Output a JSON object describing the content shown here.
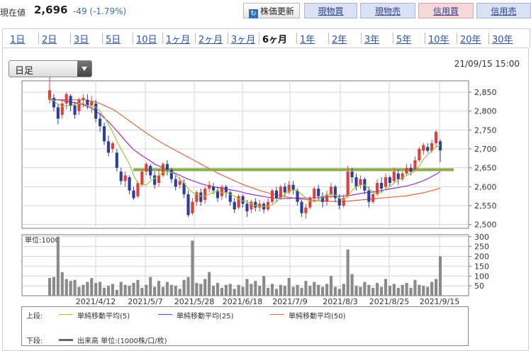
{
  "header": {
    "price_label": "現在値",
    "price_value": "2,696",
    "price_change": "-49 (-1.79%)",
    "buttons": {
      "update": "株価更新",
      "update_icon": "refresh-icon",
      "cash_buy": "現物買",
      "cash_sell": "現物売",
      "margin_buy": "信用買",
      "margin_sell": "信用売"
    }
  },
  "tabs": [
    "1日",
    "2日",
    "3日",
    "5日",
    "10日",
    "1ヶ月",
    "2ヶ月",
    "3ヶ月",
    "6ヶ月",
    "1年",
    "2年",
    "3年",
    "5年",
    "10年",
    "20年",
    "30年"
  ],
  "active_tab": "6ヶ月",
  "select": {
    "value": "日足"
  },
  "datetime": "21/09/15 15:00",
  "legend": {
    "upper_label": "上段:",
    "ma5": "単純移動平均(5)",
    "ma25": "単純移動平均(25)",
    "ma50": "単純移動平均(50)",
    "lower_label": "下段:",
    "volume": "出来高 単位:(1000株/口/枚)"
  },
  "colors": {
    "ma5": "#9ec43a",
    "ma25": "#9c2fc9",
    "ma50": "#d9673d",
    "up": "#e0403a",
    "down": "#2b3f9e",
    "support": "#8cad4e"
  },
  "chart_data": {
    "type": "candlestick",
    "price_axis": {
      "ticks": [
        "2,850",
        "2,800",
        "2,750",
        "2,700",
        "2,650",
        "2,600",
        "2,550",
        "2,500"
      ],
      "ylim": [
        2490,
        2880
      ]
    },
    "volume_axis": {
      "label": "単位:1000",
      "ticks": [
        "300",
        "250",
        "200",
        "150",
        "100",
        "50"
      ],
      "ylim": [
        0,
        310
      ]
    },
    "x_ticks": [
      "2021/4/12",
      "2021/5/7",
      "2021/5/28",
      "2021/6/18",
      "2021/7/9",
      "2021/8/3",
      "2021/8/25",
      "2021/9/15"
    ],
    "support_level": 2645,
    "candles": [
      {
        "o": 2830,
        "c": 2855,
        "h": 2890,
        "l": 2820
      },
      {
        "o": 2835,
        "c": 2810,
        "h": 2845,
        "l": 2800
      },
      {
        "o": 2810,
        "c": 2780,
        "h": 2820,
        "l": 2765
      },
      {
        "o": 2790,
        "c": 2820,
        "h": 2830,
        "l": 2780
      },
      {
        "o": 2820,
        "c": 2845,
        "h": 2850,
        "l": 2805
      },
      {
        "o": 2840,
        "c": 2815,
        "h": 2845,
        "l": 2800
      },
      {
        "o": 2815,
        "c": 2790,
        "h": 2825,
        "l": 2780
      },
      {
        "o": 2800,
        "c": 2830,
        "h": 2835,
        "l": 2790
      },
      {
        "o": 2830,
        "c": 2835,
        "h": 2845,
        "l": 2810
      },
      {
        "o": 2830,
        "c": 2815,
        "h": 2845,
        "l": 2805
      },
      {
        "o": 2815,
        "c": 2825,
        "h": 2840,
        "l": 2795
      },
      {
        "o": 2820,
        "c": 2780,
        "h": 2830,
        "l": 2770
      },
      {
        "o": 2780,
        "c": 2760,
        "h": 2795,
        "l": 2745
      },
      {
        "o": 2760,
        "c": 2720,
        "h": 2770,
        "l": 2710
      },
      {
        "o": 2720,
        "c": 2690,
        "h": 2735,
        "l": 2680
      },
      {
        "o": 2700,
        "c": 2715,
        "h": 2720,
        "l": 2690
      },
      {
        "o": 2690,
        "c": 2650,
        "h": 2700,
        "l": 2640
      },
      {
        "o": 2640,
        "c": 2615,
        "h": 2650,
        "l": 2605
      },
      {
        "o": 2615,
        "c": 2630,
        "h": 2640,
        "l": 2600
      },
      {
        "o": 2625,
        "c": 2590,
        "h": 2630,
        "l": 2580
      },
      {
        "o": 2590,
        "c": 2570,
        "h": 2600,
        "l": 2565
      },
      {
        "o": 2575,
        "c": 2610,
        "h": 2615,
        "l": 2570
      },
      {
        "o": 2605,
        "c": 2640,
        "h": 2645,
        "l": 2600
      },
      {
        "o": 2640,
        "c": 2660,
        "h": 2665,
        "l": 2630
      },
      {
        "o": 2655,
        "c": 2630,
        "h": 2660,
        "l": 2620
      },
      {
        "o": 2630,
        "c": 2605,
        "h": 2640,
        "l": 2595
      },
      {
        "o": 2610,
        "c": 2630,
        "h": 2645,
        "l": 2600
      },
      {
        "o": 2630,
        "c": 2660,
        "h": 2665,
        "l": 2625
      },
      {
        "o": 2660,
        "c": 2645,
        "h": 2670,
        "l": 2630
      },
      {
        "o": 2645,
        "c": 2620,
        "h": 2650,
        "l": 2610
      },
      {
        "o": 2620,
        "c": 2600,
        "h": 2630,
        "l": 2590
      },
      {
        "o": 2605,
        "c": 2615,
        "h": 2625,
        "l": 2595
      },
      {
        "o": 2610,
        "c": 2580,
        "h": 2620,
        "l": 2570
      },
      {
        "o": 2580,
        "c": 2525,
        "h": 2590,
        "l": 2520
      },
      {
        "o": 2530,
        "c": 2560,
        "h": 2570,
        "l": 2525
      },
      {
        "o": 2560,
        "c": 2585,
        "h": 2590,
        "l": 2550
      },
      {
        "o": 2585,
        "c": 2560,
        "h": 2595,
        "l": 2550
      },
      {
        "o": 2565,
        "c": 2595,
        "h": 2600,
        "l": 2555
      },
      {
        "o": 2595,
        "c": 2605,
        "h": 2615,
        "l": 2585
      },
      {
        "o": 2600,
        "c": 2590,
        "h": 2610,
        "l": 2580
      },
      {
        "o": 2590,
        "c": 2570,
        "h": 2600,
        "l": 2560
      },
      {
        "o": 2575,
        "c": 2600,
        "h": 2605,
        "l": 2565
      },
      {
        "o": 2600,
        "c": 2585,
        "h": 2605,
        "l": 2570
      },
      {
        "o": 2585,
        "c": 2560,
        "h": 2590,
        "l": 2550
      },
      {
        "o": 2560,
        "c": 2540,
        "h": 2570,
        "l": 2530
      },
      {
        "o": 2545,
        "c": 2575,
        "h": 2580,
        "l": 2540
      },
      {
        "o": 2575,
        "c": 2555,
        "h": 2580,
        "l": 2545
      },
      {
        "o": 2555,
        "c": 2535,
        "h": 2565,
        "l": 2520
      },
      {
        "o": 2540,
        "c": 2560,
        "h": 2565,
        "l": 2530
      },
      {
        "o": 2560,
        "c": 2545,
        "h": 2570,
        "l": 2535
      },
      {
        "o": 2545,
        "c": 2555,
        "h": 2565,
        "l": 2535
      },
      {
        "o": 2555,
        "c": 2540,
        "h": 2560,
        "l": 2530
      },
      {
        "o": 2540,
        "c": 2560,
        "h": 2570,
        "l": 2535
      },
      {
        "o": 2560,
        "c": 2590,
        "h": 2595,
        "l": 2555
      },
      {
        "o": 2590,
        "c": 2570,
        "h": 2600,
        "l": 2560
      },
      {
        "o": 2570,
        "c": 2600,
        "h": 2605,
        "l": 2565
      },
      {
        "o": 2600,
        "c": 2585,
        "h": 2610,
        "l": 2575
      },
      {
        "o": 2585,
        "c": 2605,
        "h": 2615,
        "l": 2580
      },
      {
        "o": 2605,
        "c": 2590,
        "h": 2615,
        "l": 2580
      },
      {
        "o": 2590,
        "c": 2560,
        "h": 2595,
        "l": 2550
      },
      {
        "o": 2560,
        "c": 2530,
        "h": 2565,
        "l": 2520
      },
      {
        "o": 2530,
        "c": 2545,
        "h": 2555,
        "l": 2515
      },
      {
        "o": 2545,
        "c": 2570,
        "h": 2575,
        "l": 2540
      },
      {
        "o": 2570,
        "c": 2595,
        "h": 2600,
        "l": 2560
      },
      {
        "o": 2595,
        "c": 2575,
        "h": 2605,
        "l": 2565
      },
      {
        "o": 2575,
        "c": 2560,
        "h": 2585,
        "l": 2545
      },
      {
        "o": 2560,
        "c": 2580,
        "h": 2590,
        "l": 2550
      },
      {
        "o": 2580,
        "c": 2600,
        "h": 2610,
        "l": 2570
      },
      {
        "o": 2600,
        "c": 2570,
        "h": 2605,
        "l": 2560
      },
      {
        "o": 2570,
        "c": 2550,
        "h": 2580,
        "l": 2540
      },
      {
        "o": 2550,
        "c": 2570,
        "h": 2580,
        "l": 2545
      },
      {
        "o": 2575,
        "c": 2640,
        "h": 2655,
        "l": 2570
      },
      {
        "o": 2640,
        "c": 2625,
        "h": 2650,
        "l": 2610
      },
      {
        "o": 2625,
        "c": 2600,
        "h": 2635,
        "l": 2590
      },
      {
        "o": 2605,
        "c": 2620,
        "h": 2630,
        "l": 2595
      },
      {
        "o": 2620,
        "c": 2590,
        "h": 2625,
        "l": 2580
      },
      {
        "o": 2590,
        "c": 2560,
        "h": 2600,
        "l": 2545
      },
      {
        "o": 2560,
        "c": 2580,
        "h": 2590,
        "l": 2555
      },
      {
        "o": 2580,
        "c": 2610,
        "h": 2620,
        "l": 2575
      },
      {
        "o": 2610,
        "c": 2595,
        "h": 2625,
        "l": 2585
      },
      {
        "o": 2600,
        "c": 2625,
        "h": 2635,
        "l": 2595
      },
      {
        "o": 2625,
        "c": 2610,
        "h": 2630,
        "l": 2600
      },
      {
        "o": 2615,
        "c": 2640,
        "h": 2650,
        "l": 2610
      },
      {
        "o": 2635,
        "c": 2620,
        "h": 2645,
        "l": 2605
      },
      {
        "o": 2620,
        "c": 2635,
        "h": 2640,
        "l": 2615
      },
      {
        "o": 2635,
        "c": 2650,
        "h": 2660,
        "l": 2630
      },
      {
        "o": 2650,
        "c": 2640,
        "h": 2660,
        "l": 2630
      },
      {
        "o": 2645,
        "c": 2670,
        "h": 2680,
        "l": 2640
      },
      {
        "o": 2670,
        "c": 2700,
        "h": 2705,
        "l": 2665
      },
      {
        "o": 2695,
        "c": 2710,
        "h": 2715,
        "l": 2685
      },
      {
        "o": 2705,
        "c": 2695,
        "h": 2715,
        "l": 2690
      },
      {
        "o": 2695,
        "c": 2715,
        "h": 2725,
        "l": 2690
      },
      {
        "o": 2715,
        "c": 2745,
        "h": 2750,
        "l": 2705
      },
      {
        "o": 2720,
        "c": 2696,
        "h": 2725,
        "l": 2665
      }
    ],
    "volume": [
      90,
      95,
      300,
      120,
      85,
      75,
      80,
      45,
      55,
      70,
      90,
      65,
      70,
      40,
      50,
      60,
      30,
      70,
      55,
      50,
      65,
      80,
      40,
      55,
      95,
      45,
      75,
      45,
      70,
      55,
      50,
      35,
      80,
      95,
      280,
      65,
      60,
      85,
      120,
      50,
      65,
      40,
      55,
      60,
      35,
      55,
      45,
      85,
      60,
      75,
      50,
      100,
      40,
      60,
      35,
      55,
      50,
      90,
      45,
      55,
      40,
      75,
      50,
      70,
      55,
      45,
      60,
      100,
      45,
      35,
      60,
      235,
      110,
      50,
      45,
      70,
      55,
      40,
      65,
      45,
      85,
      50,
      60,
      40,
      55,
      65,
      40,
      80,
      55,
      50,
      45,
      70,
      85,
      200
    ],
    "ma5": [
      2835,
      2828,
      2818,
      2812,
      2815,
      2813,
      2818,
      2820,
      2820,
      2815,
      2812,
      2810,
      2800,
      2785,
      2765,
      2745,
      2720,
      2700,
      2680,
      2660,
      2630,
      2610,
      2605,
      2605,
      2615,
      2622,
      2630,
      2638,
      2640,
      2638,
      2632,
      2620,
      2610,
      2595,
      2585,
      2580,
      2575,
      2575,
      2580,
      2585,
      2588,
      2585,
      2585,
      2580,
      2575,
      2568,
      2562,
      2560,
      2555,
      2550,
      2548,
      2548,
      2548,
      2552,
      2560,
      2570,
      2580,
      2588,
      2592,
      2590,
      2580,
      2570,
      2562,
      2560,
      2565,
      2572,
      2578,
      2580,
      2578,
      2570,
      2565,
      2575,
      2590,
      2600,
      2605,
      2605,
      2595,
      2585,
      2580,
      2585,
      2595,
      2600,
      2610,
      2618,
      2625,
      2630,
      2635,
      2642,
      2655,
      2672,
      2685,
      2695,
      2705,
      2710
    ],
    "ma25": [
      2830,
      2830,
      2830,
      2828,
      2826,
      2824,
      2822,
      2820,
      2817,
      2812,
      2808,
      2800,
      2792,
      2782,
      2772,
      2760,
      2748,
      2735,
      2722,
      2710,
      2698,
      2690,
      2682,
      2675,
      2668,
      2660,
      2655,
      2650,
      2645,
      2640,
      2635,
      2630,
      2625,
      2620,
      2616,
      2612,
      2608,
      2605,
      2602,
      2600,
      2598,
      2596,
      2594,
      2592,
      2590,
      2588,
      2585,
      2582,
      2580,
      2578,
      2576,
      2574,
      2572,
      2571,
      2570,
      2569,
      2569,
      2569,
      2570,
      2570,
      2570,
      2570,
      2570,
      2570,
      2571,
      2572,
      2573,
      2574,
      2575,
      2575,
      2575,
      2576,
      2578,
      2580,
      2582,
      2584,
      2585,
      2586,
      2588,
      2590,
      2592,
      2594,
      2596,
      2598,
      2600,
      2602,
      2605,
      2608,
      2612,
      2616,
      2621,
      2627,
      2633,
      2640
    ],
    "ma50": [
      2830,
      2830,
      2830,
      2830,
      2830,
      2830,
      2830,
      2830,
      2830,
      2828,
      2826,
      2824,
      2820,
      2815,
      2810,
      2805,
      2798,
      2790,
      2782,
      2774,
      2766,
      2758,
      2750,
      2742,
      2735,
      2728,
      2721,
      2714,
      2708,
      2702,
      2696,
      2690,
      2684,
      2678,
      2672,
      2666,
      2660,
      2654,
      2648,
      2642,
      2636,
      2631,
      2626,
      2621,
      2616,
      2611,
      2606,
      2602,
      2598,
      2594,
      2590,
      2587,
      2584,
      2581,
      2578,
      2576,
      2574,
      2572,
      2570,
      2568,
      2567,
      2566,
      2565,
      2564,
      2563,
      2562,
      2562,
      2561,
      2561,
      2561,
      2561,
      2562,
      2563,
      2564,
      2565,
      2566,
      2567,
      2568,
      2569,
      2570,
      2571,
      2572,
      2573,
      2574,
      2575,
      2576,
      2578,
      2580,
      2582,
      2584,
      2587,
      2590,
      2593,
      2596
    ]
  }
}
